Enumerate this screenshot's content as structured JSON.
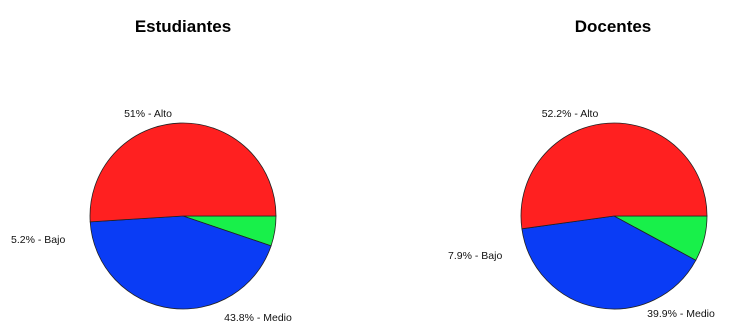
{
  "chart_data": [
    {
      "type": "pie",
      "title": "Estudiantes",
      "slices": [
        {
          "name": "Alto",
          "value": 51.0,
          "label": "51% - Alto",
          "color": "#ff2020"
        },
        {
          "name": "Medio",
          "value": 43.8,
          "label": "43.8% - Medio",
          "color": "#0a3cf5"
        },
        {
          "name": "Bajo",
          "value": 5.2,
          "label": "5.2% - Bajo",
          "color": "#18f04a"
        }
      ]
    },
    {
      "type": "pie",
      "title": "Docentes",
      "slices": [
        {
          "name": "Alto",
          "value": 52.2,
          "label": "52.2% - Alto",
          "color": "#ff2020"
        },
        {
          "name": "Medio",
          "value": 39.9,
          "label": "39.9% - Medio",
          "color": "#0a3cf5"
        },
        {
          "name": "Bajo",
          "value": 7.9,
          "label": "7.9% - Bajo",
          "color": "#18f04a"
        }
      ]
    }
  ]
}
